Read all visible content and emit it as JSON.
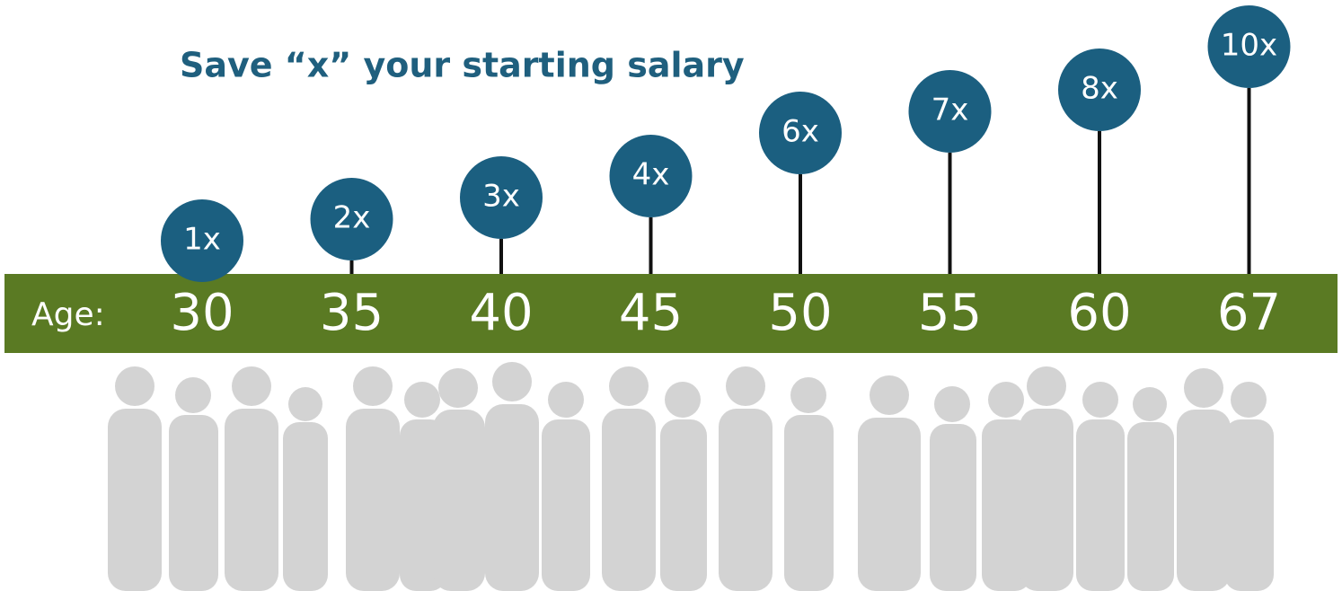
{
  "chart_data": {
    "type": "lollipop",
    "title": "Save “x” your starting salary",
    "x_label": "Age:",
    "categories": [
      "30",
      "35",
      "40",
      "45",
      "50",
      "55",
      "60",
      "67"
    ],
    "values": [
      1,
      2,
      3,
      4,
      6,
      7,
      8,
      10
    ],
    "value_labels": [
      "1x",
      "2x",
      "3x",
      "4x",
      "6x",
      "7x",
      "8x",
      "10x"
    ],
    "color": "#1b5f80",
    "band_color": "#5a7a23"
  }
}
